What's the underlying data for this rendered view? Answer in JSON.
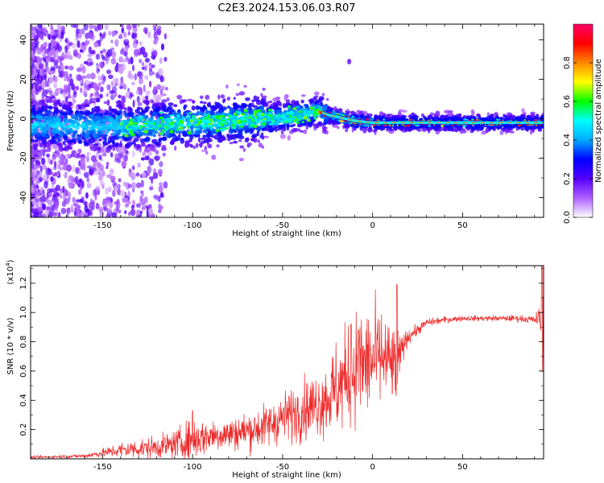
{
  "title": "C2E3.2024.153.06.03.R07",
  "colors": {
    "snr_line": "#ee2a2a",
    "spectrum_low": "#c9a6ff",
    "spectrum_mid": "#6a00ff",
    "spectrum_core": "#00e5e5",
    "spectrum_peak": "#ff2020"
  },
  "chart_data": [
    {
      "type": "heatmap",
      "name": "spectrogram",
      "xlabel": "Height of straight line (km)",
      "ylabel": "Frequency (Hz)",
      "xlim": [
        -190,
        95
      ],
      "ylim": [
        -50,
        48
      ],
      "x_ticks": [
        -150,
        -100,
        -50,
        0,
        50
      ],
      "x_tick_labels": [
        "-150",
        "-100",
        "-50",
        "0",
        "50"
      ],
      "y_ticks": [
        -40,
        -20,
        0,
        20,
        40
      ],
      "y_tick_labels": [
        "-40",
        "-20",
        "0",
        "20",
        "40"
      ],
      "ridge": {
        "x": [
          -190,
          -150,
          -120,
          -100,
          -80,
          -60,
          -40,
          -30,
          -25,
          -20,
          -10,
          0,
          10,
          20,
          50,
          95
        ],
        "y": [
          -3,
          -4,
          -3,
          -2,
          -1,
          0,
          2,
          4,
          2,
          1,
          -1,
          -2,
          -2,
          -2,
          -2,
          -2
        ]
      },
      "colorbar": {
        "label": "Normalized spectral amplitude",
        "range": [
          0,
          1
        ],
        "ticks": [
          0.0,
          0.2,
          0.4,
          0.6,
          0.8
        ],
        "tick_labels": [
          "0.0",
          "0.2",
          "0.4",
          "0.6",
          "0.8"
        ],
        "colormap": [
          "#ffffff",
          "#b060ff",
          "#5500ff",
          "#0000ff",
          "#00aaff",
          "#00ffff",
          "#00ff00",
          "#ffff00",
          "#ff8800",
          "#ff0000",
          "#ff0066"
        ]
      }
    },
    {
      "type": "line",
      "name": "snr",
      "xlabel": "Height of straight line (km)",
      "ylabel": "SNR (10 * v/v)",
      "scale_note": "(x10",
      "scale_exp": "4",
      "scale_close": ")",
      "xlim": [
        -190,
        95
      ],
      "ylim": [
        0,
        1.32
      ],
      "x_ticks": [
        -150,
        -100,
        -50,
        0,
        50
      ],
      "x_tick_labels": [
        "-150",
        "-100",
        "-50",
        "0",
        "50"
      ],
      "y_ticks": [
        0.2,
        0.4,
        0.6,
        0.8,
        1.0,
        1.2
      ],
      "y_tick_labels": [
        "0.2",
        "0.4",
        "0.6",
        "0.8",
        "1.0",
        "1.2"
      ],
      "envelope": {
        "x": [
          -190,
          -160,
          -150,
          -140,
          -120,
          -110,
          -100,
          -90,
          -80,
          -70,
          -60,
          -50,
          -40,
          -30,
          -25,
          -20,
          -15,
          -10,
          -5,
          0,
          5,
          10,
          14,
          16,
          20,
          25,
          30,
          40,
          50,
          60,
          70,
          80,
          90,
          93,
          95
        ],
        "y": [
          0.01,
          0.02,
          0.04,
          0.06,
          0.08,
          0.1,
          0.13,
          0.16,
          0.17,
          0.19,
          0.22,
          0.28,
          0.33,
          0.38,
          0.42,
          0.48,
          0.55,
          0.62,
          0.64,
          0.67,
          0.7,
          0.65,
          0.6,
          0.75,
          0.84,
          0.88,
          0.93,
          0.95,
          0.96,
          0.96,
          0.96,
          0.96,
          0.95,
          0.96,
          0.9
        ],
        "noise": [
          0.005,
          0.008,
          0.015,
          0.03,
          0.04,
          0.05,
          0.08,
          0.06,
          0.06,
          0.07,
          0.08,
          0.09,
          0.11,
          0.12,
          0.14,
          0.18,
          0.18,
          0.2,
          0.22,
          0.2,
          0.18,
          0.15,
          0.15,
          0.05,
          0.03,
          0.02,
          0.015,
          0.012,
          0.01,
          0.01,
          0.01,
          0.012,
          0.015,
          0.05,
          0.2
        ]
      },
      "spikes": [
        {
          "x": -100,
          "y": 0.33
        },
        {
          "x": -12,
          "y": 0.92
        },
        {
          "x": -8,
          "y": 0.88
        },
        {
          "x": 13.5,
          "y": 1.19
        },
        {
          "x": 94,
          "y": 1.32
        }
      ]
    }
  ]
}
